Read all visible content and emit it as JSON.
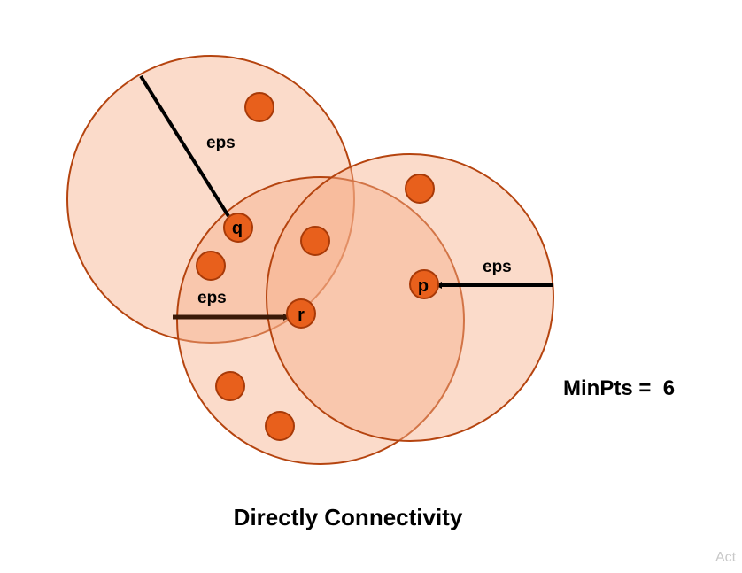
{
  "labels": {
    "eps_q": "eps",
    "eps_r": "eps",
    "eps_p": "eps",
    "point_q": "q",
    "point_r": "r",
    "point_p": "p"
  },
  "minpts": {
    "label": "MinPts =",
    "value": "6"
  },
  "caption": "Directly Connectivity",
  "watermark": "Act",
  "colors": {
    "circle_fill": "#f7b08a",
    "circle_stroke": "#b5440f",
    "point_fill": "#e8601c",
    "point_stroke": "#a83a08"
  }
}
